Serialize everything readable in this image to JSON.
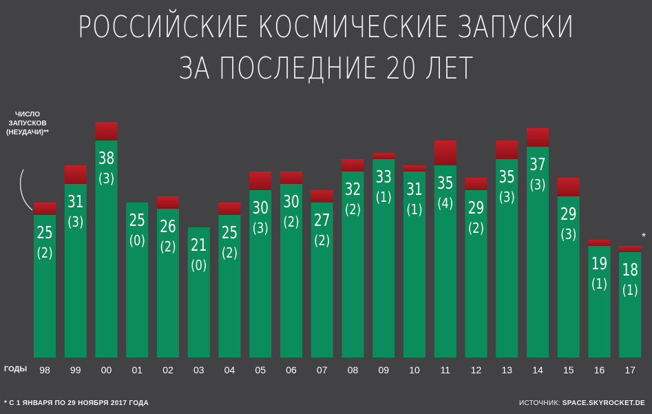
{
  "title_line1": "РОССИЙСКИЕ КОСМИЧЕСКИЕ ЗАПУСКИ",
  "title_line2": "ЗА ПОСЛЕДНИЕ 20 ЛЕТ",
  "legend_note": "ЧИСЛО ЗАПУСКОВ (НЕУДАЧИ)**",
  "years_label": "ГОДЫ",
  "footnote": "* С 1 ЯНВАРЯ ПО 29 НОЯБРЯ 2017 ГОДА",
  "source_label": "ИСТОЧНИК:",
  "source_value": "SPACE.SKYROCKET.DE",
  "asterisk": "*",
  "colors": {
    "background": "#424244",
    "success": "#0a8c5c",
    "failure_dark": "#8c1218",
    "failure_light": "#c21e26",
    "text": "#ffffff"
  },
  "chart_data": {
    "type": "bar",
    "stacked": true,
    "title": "РОССИЙСКИЕ КОСМИЧЕСКИЕ ЗАПУСКИ ЗА ПОСЛЕДНИЕ 20 ЛЕТ",
    "xlabel": "ГОДЫ",
    "ylabel": "ЧИСЛО ЗАПУСКОВ (НЕУДАЧИ)**",
    "categories": [
      "98",
      "99",
      "00",
      "01",
      "02",
      "03",
      "04",
      "05",
      "06",
      "07",
      "08",
      "09",
      "10",
      "11",
      "12",
      "13",
      "14",
      "15",
      "16",
      "17"
    ],
    "series": [
      {
        "name": "Запуски",
        "values": [
          25,
          31,
          38,
          25,
          26,
          21,
          25,
          30,
          30,
          27,
          32,
          33,
          31,
          35,
          29,
          35,
          37,
          29,
          19,
          18
        ]
      },
      {
        "name": "Неудачи",
        "values": [
          2,
          3,
          3,
          0,
          2,
          0,
          2,
          3,
          2,
          2,
          2,
          1,
          1,
          4,
          2,
          3,
          3,
          3,
          1,
          1
        ]
      }
    ],
    "ylim": [
      0,
      41
    ]
  }
}
